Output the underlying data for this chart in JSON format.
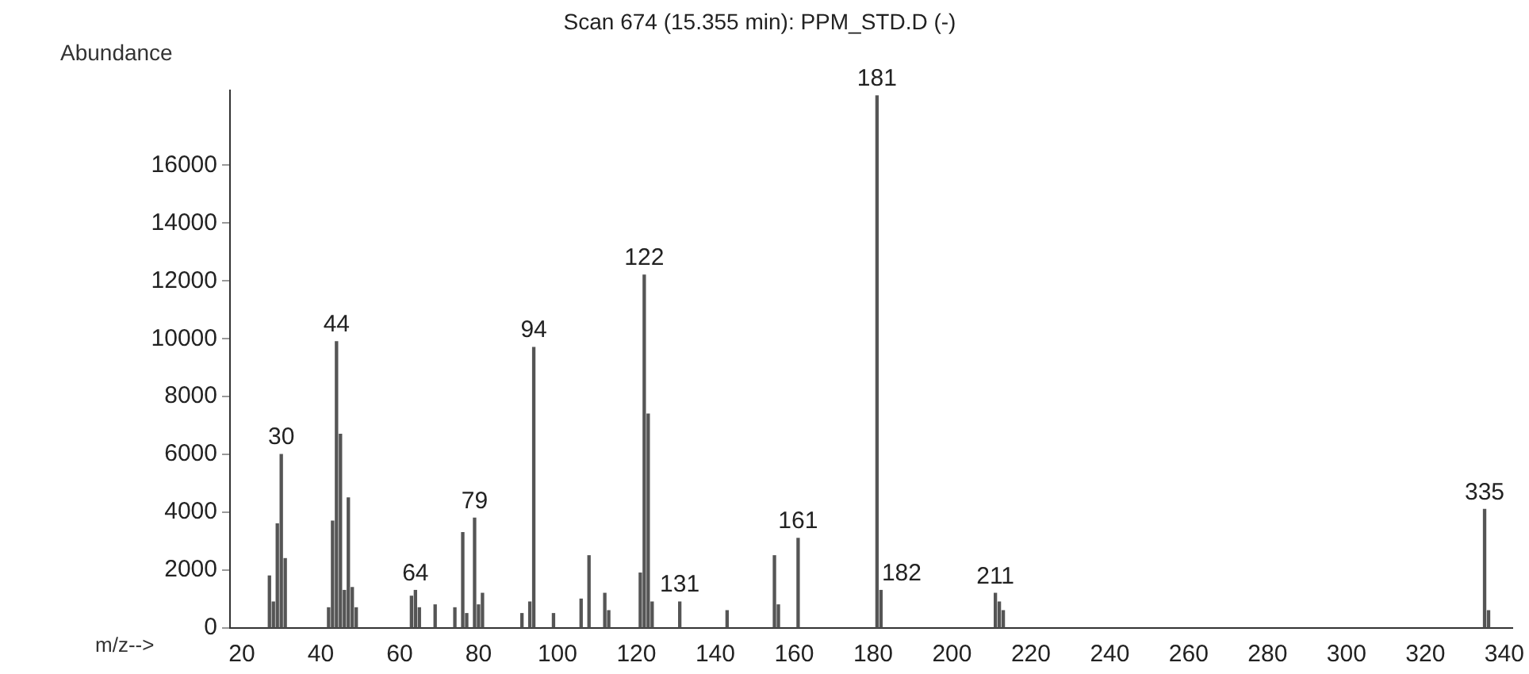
{
  "chart_data": {
    "type": "bar",
    "title": "Scan 674 (15.355 min): PPM_STD.D (-)",
    "xlabel": "m/z-->",
    "ylabel": "Abundance",
    "x": [
      27,
      28,
      29,
      30,
      31,
      42,
      43,
      44,
      45,
      46,
      47,
      48,
      49,
      63,
      64,
      65,
      69,
      74,
      76,
      77,
      79,
      80,
      81,
      91,
      93,
      94,
      99,
      106,
      108,
      112,
      113,
      121,
      122,
      123,
      124,
      131,
      143,
      155,
      156,
      161,
      181,
      182,
      211,
      212,
      213,
      335,
      336
    ],
    "values": [
      1800,
      900,
      3600,
      6000,
      2400,
      700,
      3700,
      9900,
      6700,
      1300,
      4500,
      1400,
      700,
      1100,
      1300,
      700,
      800,
      700,
      3300,
      500,
      3800,
      800,
      1200,
      500,
      900,
      9700,
      500,
      1000,
      2500,
      1200,
      600,
      1900,
      12200,
      7400,
      900,
      900,
      600,
      2500,
      800,
      3100,
      18400,
      1300,
      1200,
      900,
      600,
      4100,
      600
    ],
    "annotations": [
      {
        "text": "30",
        "x": 30,
        "y": 6000
      },
      {
        "text": "44",
        "x": 44,
        "y": 9900
      },
      {
        "text": "64",
        "x": 64,
        "y": 1300
      },
      {
        "text": "79",
        "x": 79,
        "y": 3800
      },
      {
        "text": "94",
        "x": 94,
        "y": 9700
      },
      {
        "text": "122",
        "x": 122,
        "y": 12200
      },
      {
        "text": "131",
        "x": 131,
        "y": 900
      },
      {
        "text": "161",
        "x": 161,
        "y": 3100
      },
      {
        "text": "181",
        "x": 181,
        "y": 18400
      },
      {
        "text": "182",
        "x": 182,
        "y": 1300
      },
      {
        "text": "211",
        "x": 211,
        "y": 1200
      },
      {
        "text": "335",
        "x": 335,
        "y": 4100
      }
    ],
    "color": "#555555",
    "xlim": [
      17,
      342
    ],
    "xticks": [
      20,
      40,
      60,
      80,
      100,
      120,
      140,
      160,
      180,
      200,
      220,
      240,
      260,
      280,
      300,
      320,
      340
    ],
    "ylim": [
      0,
      18600
    ],
    "yticks": [
      0,
      2000,
      4000,
      6000,
      8000,
      10000,
      12000,
      14000,
      16000
    ],
    "grid": false
  }
}
